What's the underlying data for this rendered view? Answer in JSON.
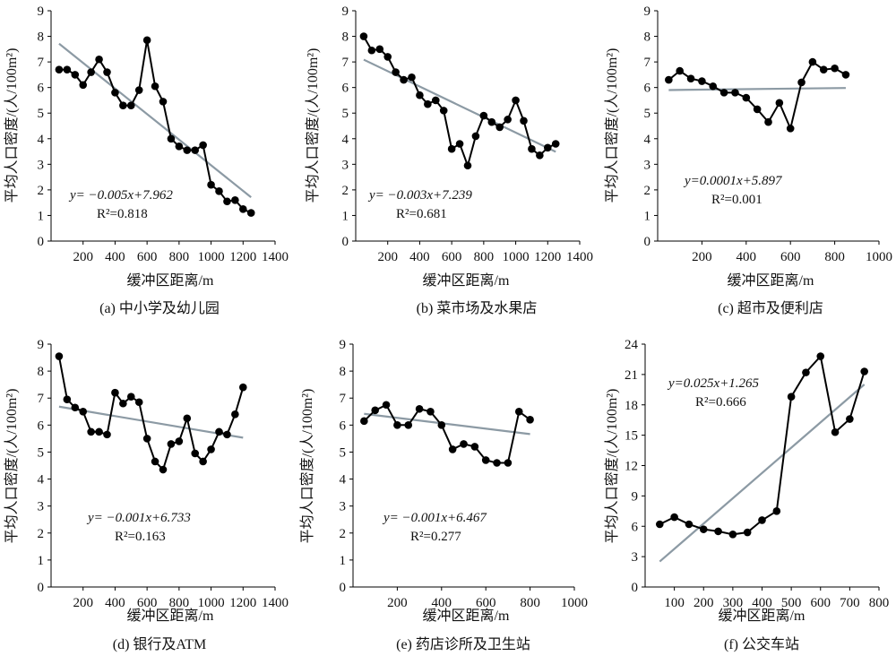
{
  "figure": {
    "colors": {
      "data_line": "#000000",
      "fit_line": "#8c9aa4",
      "axis": "#000000"
    }
  },
  "chart_data": [
    {
      "id": "a",
      "type": "line",
      "caption": "(a) 中小学及幼儿园",
      "xlabel": "缓冲区距离/m",
      "ylabel": "平均人口密度/(人/100m²)",
      "xlim": [
        0,
        1400
      ],
      "ylim": [
        0,
        9
      ],
      "xticks": [
        200,
        400,
        600,
        800,
        1000,
        1200,
        1400
      ],
      "yticks": [
        0,
        1,
        2,
        3,
        4,
        5,
        6,
        7,
        8,
        9
      ],
      "x": [
        50,
        100,
        150,
        200,
        250,
        300,
        350,
        400,
        450,
        500,
        550,
        600,
        650,
        700,
        750,
        800,
        850,
        900,
        950,
        1000,
        1050,
        1100,
        1150,
        1200,
        1250
      ],
      "y": [
        6.7,
        6.7,
        6.5,
        6.1,
        6.6,
        7.1,
        6.6,
        5.8,
        5.3,
        5.3,
        5.9,
        7.85,
        6.05,
        5.45,
        4.0,
        3.7,
        3.55,
        3.55,
        3.75,
        2.2,
        1.95,
        1.55,
        1.6,
        1.25,
        1.1
      ],
      "fit": {
        "slope": -0.005,
        "intercept": 7.962,
        "x_range": [
          50,
          1250
        ]
      },
      "equation": "y= −0.005x+7.962",
      "r2": "R²=0.818"
    },
    {
      "id": "b",
      "type": "line",
      "caption": "(b) 菜市场及水果店",
      "xlabel": "缓冲区距离/m",
      "ylabel": "平均人口密度/(人/100m²)",
      "xlim": [
        0,
        1400
      ],
      "ylim": [
        0,
        9
      ],
      "xticks": [
        200,
        400,
        600,
        800,
        1000,
        1200,
        1400
      ],
      "yticks": [
        0,
        1,
        2,
        3,
        4,
        5,
        6,
        7,
        8,
        9
      ],
      "x": [
        50,
        100,
        150,
        200,
        250,
        300,
        350,
        400,
        450,
        500,
        550,
        600,
        650,
        700,
        750,
        800,
        850,
        900,
        950,
        1000,
        1050,
        1100,
        1150,
        1200,
        1250
      ],
      "y": [
        8.0,
        7.45,
        7.5,
        7.2,
        6.6,
        6.3,
        6.4,
        5.7,
        5.35,
        5.5,
        5.1,
        3.6,
        3.8,
        2.95,
        4.1,
        4.9,
        4.65,
        4.45,
        4.75,
        5.5,
        4.7,
        3.6,
        3.35,
        3.65,
        3.8
      ],
      "fit": {
        "slope": -0.003,
        "intercept": 7.239,
        "x_range": [
          50,
          1250
        ]
      },
      "equation": "y= −0.003x+7.239",
      "r2": "R²=0.681"
    },
    {
      "id": "c",
      "type": "line",
      "caption": "(c) 超市及便利店",
      "xlabel": "缓冲区距离/m",
      "ylabel": "平均人口密度/(人/100m²)",
      "xlim": [
        0,
        1000
      ],
      "ylim": [
        0,
        9
      ],
      "xticks": [
        200,
        400,
        600,
        800,
        1000
      ],
      "yticks": [
        0,
        1,
        2,
        3,
        4,
        5,
        6,
        7,
        8,
        9
      ],
      "x": [
        50,
        100,
        150,
        200,
        250,
        300,
        350,
        400,
        450,
        500,
        550,
        600,
        650,
        700,
        750,
        800,
        850
      ],
      "y": [
        6.3,
        6.65,
        6.35,
        6.25,
        6.05,
        5.8,
        5.8,
        5.6,
        5.15,
        4.65,
        5.4,
        4.4,
        6.2,
        7.0,
        6.7,
        6.75,
        6.5
      ],
      "fit": {
        "slope": 0.0001,
        "intercept": 5.897,
        "x_range": [
          50,
          850
        ]
      },
      "equation": "y=0.0001x+5.897",
      "r2": "R²=0.001"
    },
    {
      "id": "d",
      "type": "line",
      "caption": "(d) 银行及ATM",
      "xlabel": "缓冲区距离/m",
      "ylabel": "平均人口密度/(人/100m²)",
      "xlim": [
        0,
        1400
      ],
      "ylim": [
        0,
        9
      ],
      "xticks": [
        200,
        400,
        600,
        800,
        1000,
        1200,
        1400
      ],
      "yticks": [
        0,
        1,
        2,
        3,
        4,
        5,
        6,
        7,
        8,
        9
      ],
      "x": [
        50,
        100,
        150,
        200,
        250,
        300,
        350,
        400,
        450,
        500,
        550,
        600,
        650,
        700,
        750,
        800,
        850,
        900,
        950,
        1000,
        1050,
        1100,
        1150,
        1200
      ],
      "y": [
        8.55,
        6.95,
        6.65,
        6.5,
        5.75,
        5.75,
        5.65,
        7.2,
        6.8,
        7.05,
        6.85,
        5.5,
        4.65,
        4.35,
        5.3,
        5.4,
        6.25,
        4.95,
        4.65,
        5.1,
        5.75,
        5.65,
        6.4,
        7.4
      ],
      "fit": {
        "slope": -0.001,
        "intercept": 6.733,
        "x_range": [
          50,
          1200
        ]
      },
      "equation": "y= −0.001x+6.733",
      "r2": "R²=0.163"
    },
    {
      "id": "e",
      "type": "line",
      "caption": "(e) 药店诊所及卫生站",
      "xlabel": "缓冲区距离/m",
      "ylabel": "平均人口密度/(人/100m²)",
      "xlim": [
        0,
        1000
      ],
      "ylim": [
        0,
        9
      ],
      "xticks": [
        200,
        400,
        600,
        800,
        1000
      ],
      "yticks": [
        0,
        1,
        2,
        3,
        4,
        5,
        6,
        7,
        8,
        9
      ],
      "x": [
        50,
        100,
        150,
        200,
        250,
        300,
        350,
        400,
        450,
        500,
        550,
        600,
        650,
        700,
        750,
        800
      ],
      "y": [
        6.15,
        6.55,
        6.75,
        6.0,
        6.0,
        6.6,
        6.5,
        6.0,
        5.1,
        5.3,
        5.2,
        4.7,
        4.6,
        4.6,
        6.5,
        6.2
      ],
      "fit": {
        "slope": -0.001,
        "intercept": 6.467,
        "x_range": [
          50,
          800
        ]
      },
      "equation": "y= −0.001x+6.467",
      "r2": "R²=0.277"
    },
    {
      "id": "f",
      "type": "line",
      "caption": "(f) 公交车站",
      "xlabel": "缓冲区距离/m",
      "ylabel": "平均人口密度/(人/100m²)",
      "xlim": [
        0,
        800
      ],
      "ylim": [
        0,
        24
      ],
      "xticks": [
        100,
        200,
        300,
        400,
        500,
        600,
        700,
        800
      ],
      "yticks": [
        0,
        3,
        6,
        9,
        12,
        15,
        18,
        21,
        24
      ],
      "x": [
        50,
        100,
        150,
        200,
        250,
        300,
        350,
        400,
        450,
        500,
        550,
        600,
        650,
        700,
        750
      ],
      "y": [
        6.2,
        6.9,
        6.2,
        5.7,
        5.5,
        5.2,
        5.4,
        6.6,
        7.5,
        18.8,
        21.2,
        22.8,
        15.3,
        16.6,
        21.3
      ],
      "fit": {
        "slope": 0.025,
        "intercept": 1.265,
        "x_range": [
          50,
          750
        ]
      },
      "equation": "y=0.025x+1.265",
      "r2": "R²=0.666"
    }
  ]
}
